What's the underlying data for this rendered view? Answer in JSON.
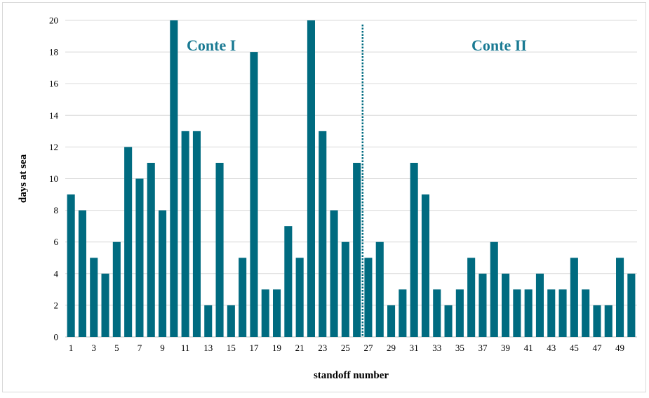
{
  "chart_data": {
    "type": "bar",
    "title": "",
    "xlabel": "standoff number",
    "ylabel": "days at sea",
    "ylim": [
      0,
      20
    ],
    "y_ticks": [
      0,
      2,
      4,
      6,
      8,
      10,
      12,
      14,
      16,
      18,
      20
    ],
    "x_tick_labels": [
      "1",
      "3",
      "5",
      "7",
      "9",
      "11",
      "13",
      "15",
      "17",
      "19",
      "21",
      "23",
      "25",
      "27",
      "29",
      "31",
      "33",
      "35",
      "37",
      "39",
      "41",
      "43",
      "45",
      "47",
      "49"
    ],
    "grid": true,
    "categories": [
      1,
      2,
      3,
      4,
      5,
      6,
      7,
      8,
      9,
      10,
      11,
      12,
      13,
      14,
      15,
      16,
      17,
      18,
      19,
      20,
      21,
      22,
      23,
      24,
      25,
      26,
      27,
      28,
      29,
      30,
      31,
      32,
      33,
      34,
      35,
      36,
      37,
      38,
      39,
      40,
      41,
      42,
      43,
      44,
      45,
      46,
      47,
      48,
      49,
      50
    ],
    "values": [
      9,
      8,
      5,
      4,
      6,
      12,
      10,
      11,
      8,
      20,
      13,
      13,
      2,
      11,
      2,
      5,
      18,
      3,
      3,
      7,
      5,
      20,
      13,
      8,
      6,
      11,
      5,
      6,
      2,
      3,
      11,
      9,
      3,
      2,
      3,
      5,
      4,
      6,
      4,
      3,
      3,
      4,
      3,
      3,
      5,
      3,
      2,
      2,
      5,
      4
    ],
    "bar_color": "#006b80",
    "divider": {
      "after_category": 26,
      "style": "dotted",
      "color": "#006b80"
    },
    "annotations": [
      {
        "text": "Conte I",
        "region": "left",
        "color": "#1a7a93"
      },
      {
        "text": "Conte II",
        "region": "right",
        "color": "#1a7a93"
      }
    ]
  }
}
